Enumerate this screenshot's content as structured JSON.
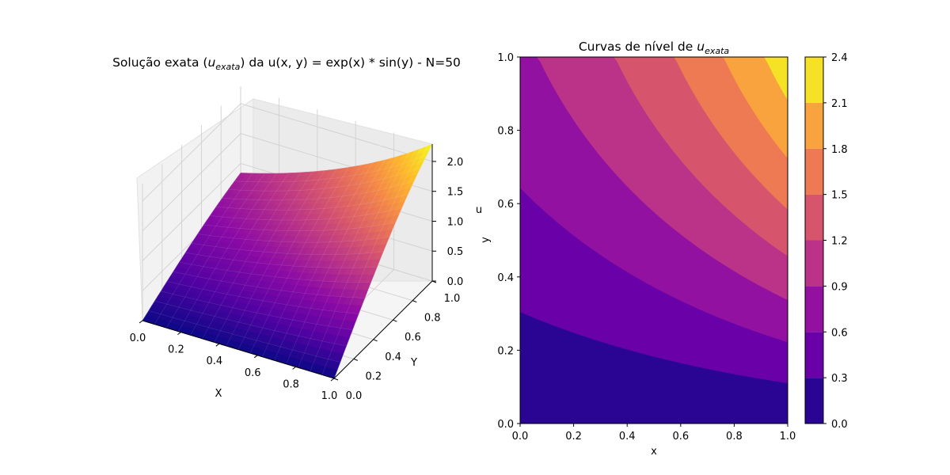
{
  "chart_data": [
    {
      "type": "surface",
      "title_prefix": "Solução exata (",
      "title_var": "u",
      "title_sub": "exata",
      "title_suffix": ") da u(x, y) = exp(x) * sin(y) - N=50",
      "function": "exp(x) * sin(y)",
      "N": 50,
      "xlabel": "X",
      "ylabel": "Y",
      "zlabel": "u",
      "xlim": [
        0,
        1
      ],
      "ylim": [
        0,
        1
      ],
      "zlim": [
        0,
        2.29
      ],
      "x_ticks": [
        "0.0",
        "0.2",
        "0.4",
        "0.6",
        "0.8",
        "1.0"
      ],
      "y_ticks": [
        "0.0",
        "0.2",
        "0.4",
        "0.6",
        "0.8",
        "1.0"
      ],
      "z_ticks": [
        "0.0",
        "0.5",
        "1.0",
        "1.5",
        "2.0"
      ],
      "colormap": "plasma"
    },
    {
      "type": "contourf",
      "title_prefix": "Curvas de nível de ",
      "title_var": "u",
      "title_sub": "exata",
      "function": "exp(x) * sin(y)",
      "xlabel": "x",
      "ylabel": "y",
      "xlim": [
        0,
        1
      ],
      "ylim": [
        0,
        1
      ],
      "x_ticks": [
        "0.0",
        "0.2",
        "0.4",
        "0.6",
        "0.8",
        "1.0"
      ],
      "y_ticks": [
        "0.0",
        "0.2",
        "0.4",
        "0.6",
        "0.8",
        "1.0"
      ],
      "levels": [
        0.0,
        0.3,
        0.6,
        0.9,
        1.2,
        1.5,
        1.8,
        2.1,
        2.4
      ],
      "level_colors": [
        "#2a0593",
        "#6900a8",
        "#9311a1",
        "#ba3388",
        "#d6556d",
        "#ed7a52",
        "#f9a33e",
        "#f5e226"
      ],
      "colorbar_ticks": [
        "0.0",
        "0.3",
        "0.6",
        "0.9",
        "1.2",
        "1.5",
        "1.8",
        "2.1",
        "2.4"
      ],
      "colormap": "plasma"
    }
  ]
}
